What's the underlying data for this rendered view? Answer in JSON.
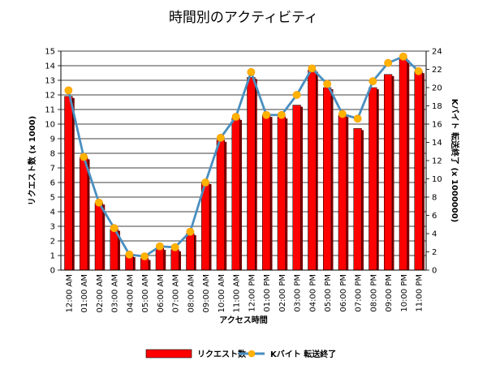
{
  "chart_data": {
    "type": "bar",
    "title": "時間別のアクティビティ",
    "xlabel": "アクセス時間",
    "ylabel": "リクエスト数 (x 1000)",
    "y2label": "Kバイト 転送終了 (x 1000000)",
    "ylim": [
      0,
      15
    ],
    "y2lim": [
      0,
      24
    ],
    "yticks": [
      "0",
      "1",
      "2",
      "3",
      "4",
      "5",
      "6",
      "7",
      "8",
      "9",
      "10",
      "11",
      "12",
      "13",
      "14",
      "15"
    ],
    "y2ticks": [
      "0",
      "2",
      "4",
      "6",
      "8",
      "10",
      "12",
      "14",
      "16",
      "18",
      "20",
      "22",
      "24"
    ],
    "grid": true,
    "legend_position": "bottom",
    "categories": [
      "12:00 AM",
      "01:00 AM",
      "02:00 AM",
      "03:00 AM",
      "04:00 AM",
      "05:00 AM",
      "06:00 AM",
      "07:00 AM",
      "08:00 AM",
      "09:00 AM",
      "10:00 AM",
      "11:00 AM",
      "12:00 PM",
      "01:00 PM",
      "02:00 PM",
      "03:00 PM",
      "04:00 PM",
      "05:00 PM",
      "06:00 PM",
      "07:00 PM",
      "08:00 PM",
      "09:00 PM",
      "10:00 PM",
      "11:00 PM"
    ],
    "series": [
      {
        "name": "リクエスト数",
        "type": "bar",
        "axis": "left",
        "color": "#ff0000",
        "values": [
          11.9,
          7.7,
          4.6,
          2.8,
          1.0,
          0.8,
          1.5,
          1.4,
          2.5,
          6.0,
          8.9,
          10.4,
          13.2,
          10.6,
          10.5,
          11.3,
          13.7,
          12.5,
          10.6,
          9.7,
          12.5,
          13.4,
          14.5,
          13.6
        ]
      },
      {
        "name": "Kバイト 転送終了",
        "type": "line",
        "axis": "right",
        "color": "#4a8fc0",
        "marker_color": "#ffb300",
        "values": [
          19.7,
          12.4,
          7.4,
          4.6,
          1.7,
          1.5,
          2.6,
          2.5,
          4.2,
          9.6,
          14.5,
          16.8,
          21.7,
          17.0,
          17.0,
          19.2,
          22.1,
          20.4,
          17.1,
          16.6,
          20.7,
          22.7,
          23.4,
          21.8
        ]
      }
    ]
  }
}
